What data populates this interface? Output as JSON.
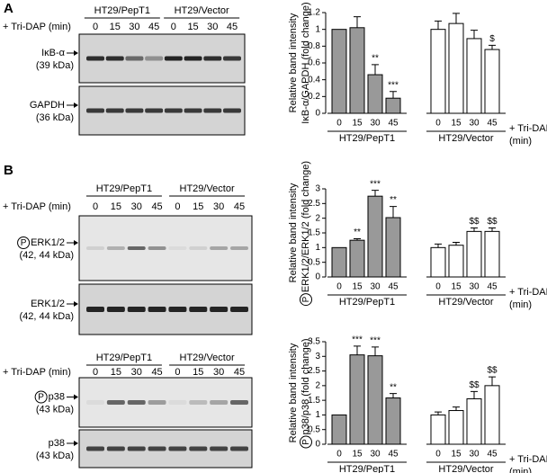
{
  "panel_labels": [
    "A",
    "B"
  ],
  "blots": [
    {
      "groups": [
        "HT29/PepT1",
        "HT29/Vector"
      ],
      "treatment": "+ Tri-DAP (min)",
      "times": [
        "0",
        "15",
        "30",
        "45",
        "0",
        "15",
        "30",
        "45"
      ],
      "rows": [
        {
          "label": "IκB-α",
          "size": "(39 kDa)"
        },
        {
          "label": "GAPDH",
          "size": "(36 kDa)"
        }
      ]
    },
    {
      "groups": [
        "HT29/PepT1",
        "HT29/Vector"
      ],
      "treatment": "+ Tri-DAP (min)",
      "times": [
        "0",
        "15",
        "30",
        "45",
        "0",
        "15",
        "30",
        "45"
      ],
      "rows": [
        {
          "mark": "P",
          "label": "ERK1/2",
          "size": "(42, 44 kDa)"
        },
        {
          "label": "ERK1/2",
          "size": "(42, 44 kDa)"
        }
      ]
    },
    {
      "groups": [
        "HT29/PepT1",
        "HT29/Vector"
      ],
      "treatment": "+ Tri-DAP (min)",
      "times": [
        "0",
        "15",
        "30",
        "45",
        "0",
        "15",
        "30",
        "45"
      ],
      "rows": [
        {
          "mark": "P",
          "label": "p38",
          "size": "(43 kDa)"
        },
        {
          "label": "p38",
          "size": "(43 kDa)"
        }
      ]
    }
  ],
  "chart_data": [
    {
      "type": "bar",
      "ylabel": [
        "Relative band intensity",
        "IκB-α/GAPDH (fold change)"
      ],
      "categories": [
        "0",
        "15",
        "30",
        "45"
      ],
      "x_label": [
        "+ Tri-DAP",
        "(min)"
      ],
      "ylim": [
        0,
        1.2
      ],
      "yticks": [
        0,
        0.2,
        0.4,
        0.6,
        0.8,
        1,
        1.2
      ],
      "series": [
        {
          "name": "HT29/PepT1",
          "color": "#999999",
          "values": [
            1,
            1.02,
            0.46,
            0.18
          ],
          "errors": [
            0,
            0.13,
            0.12,
            0.08
          ],
          "annotations": [
            null,
            null,
            "**",
            "***"
          ]
        },
        {
          "name": "HT29/Vector",
          "color": "#ffffff",
          "values": [
            1,
            1.07,
            0.89,
            0.76
          ],
          "errors": [
            0.1,
            0.12,
            0.1,
            0.05
          ],
          "annotations": [
            null,
            null,
            null,
            "$"
          ]
        }
      ]
    },
    {
      "type": "bar",
      "ylabel": [
        "Relative band intensity",
        "ERK1/2/ERK1/2 (fold change)"
      ],
      "ylabel_mark": "P",
      "categories": [
        "0",
        "15",
        "30",
        "45"
      ],
      "x_label": [
        "+ Tri-DAP",
        "(min)"
      ],
      "ylim": [
        0,
        3
      ],
      "yticks": [
        0,
        0.5,
        1,
        1.5,
        2,
        2.5,
        3
      ],
      "series": [
        {
          "name": "HT29/PepT1",
          "color": "#999999",
          "values": [
            1,
            1.25,
            2.75,
            2.02
          ],
          "errors": [
            0,
            0.05,
            0.2,
            0.38
          ],
          "annotations": [
            null,
            "**",
            "***",
            "**"
          ]
        },
        {
          "name": "HT29/Vector",
          "color": "#ffffff",
          "values": [
            1,
            1.08,
            1.55,
            1.55
          ],
          "errors": [
            0.12,
            0.1,
            0.12,
            0.12
          ],
          "annotations": [
            null,
            null,
            "$$",
            "$$"
          ]
        }
      ]
    },
    {
      "type": "bar",
      "ylabel": [
        "Relative band intensity",
        "p38/p38 (fold change)"
      ],
      "ylabel_mark": "P",
      "categories": [
        "0",
        "15",
        "30",
        "45"
      ],
      "x_label": [
        "+ Tri-DAP",
        "(min)"
      ],
      "ylim": [
        0,
        3.5
      ],
      "yticks": [
        0,
        0.5,
        1,
        1.5,
        2,
        2.5,
        3,
        3.5
      ],
      "series": [
        {
          "name": "HT29/PepT1",
          "color": "#999999",
          "values": [
            1,
            3.05,
            3.02,
            1.58
          ],
          "errors": [
            0,
            0.3,
            0.3,
            0.15
          ],
          "annotations": [
            null,
            "***",
            "***",
            "**"
          ]
        },
        {
          "name": "HT29/Vector",
          "color": "#ffffff",
          "values": [
            1,
            1.15,
            1.55,
            2.0
          ],
          "errors": [
            0.1,
            0.12,
            0.25,
            0.3
          ],
          "annotations": [
            null,
            null,
            "$$",
            "$$"
          ]
        }
      ]
    }
  ]
}
